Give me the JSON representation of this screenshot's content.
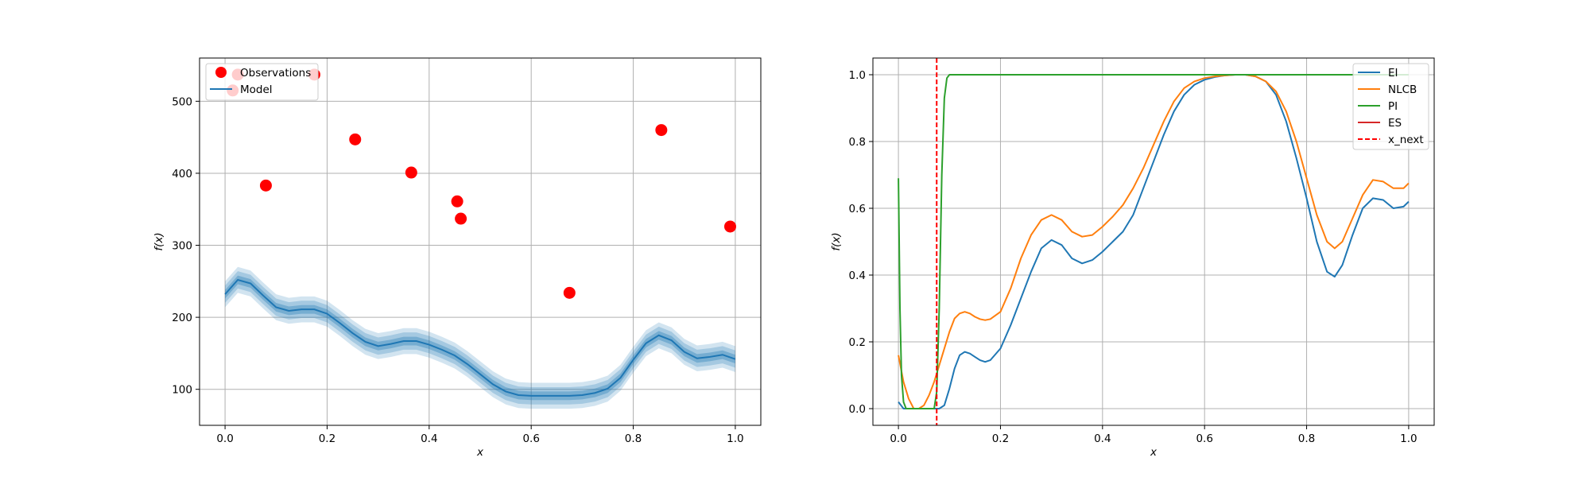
{
  "chart_data": [
    {
      "type": "scatter",
      "xlabel": "x",
      "ylabel": "f(x)",
      "xlim": [
        -0.05,
        1.05
      ],
      "ylim": [
        50,
        560
      ],
      "xticks": [
        0.0,
        0.2,
        0.4,
        0.6,
        0.8,
        1.0
      ],
      "xtick_labels": [
        "0.0",
        "0.2",
        "0.4",
        "0.6",
        "0.8",
        "1.0"
      ],
      "yticks": [
        100,
        200,
        300,
        400,
        500
      ],
      "ytick_labels": [
        "100",
        "200",
        "300",
        "400",
        "500"
      ],
      "grid": true,
      "legend_position": "upper-left",
      "legend": [
        "Observations",
        "Model"
      ],
      "observations": {
        "name": "Observations",
        "color": "#ff0000",
        "x": [
          0.015,
          0.025,
          0.08,
          0.175,
          0.255,
          0.365,
          0.455,
          0.462,
          0.675,
          0.855,
          0.99
        ],
        "y": [
          515,
          537,
          383,
          537,
          447,
          401,
          361,
          337,
          234,
          460,
          326
        ]
      },
      "model": {
        "name": "Model",
        "color": "#1f77b4",
        "x": [
          0.0,
          0.025,
          0.05,
          0.075,
          0.1,
          0.125,
          0.15,
          0.175,
          0.2,
          0.225,
          0.25,
          0.275,
          0.3,
          0.325,
          0.35,
          0.375,
          0.4,
          0.425,
          0.45,
          0.475,
          0.5,
          0.525,
          0.55,
          0.575,
          0.6,
          0.625,
          0.65,
          0.675,
          0.7,
          0.725,
          0.75,
          0.775,
          0.8,
          0.825,
          0.85,
          0.875,
          0.9,
          0.925,
          0.95,
          0.975,
          1.0
        ],
        "mean": [
          232,
          252,
          247,
          230,
          214,
          209,
          211,
          211,
          205,
          192,
          178,
          166,
          160,
          163,
          167,
          167,
          162,
          155,
          147,
          135,
          121,
          107,
          97,
          92,
          91,
          91,
          91,
          91,
          92,
          95,
          101,
          116,
          141,
          164,
          175,
          168,
          152,
          143,
          145,
          148,
          142
        ],
        "bands": [
          6,
          12,
          18
        ]
      }
    },
    {
      "type": "line",
      "xlabel": "x",
      "ylabel": "f(x)",
      "xlim": [
        -0.05,
        1.05
      ],
      "ylim": [
        -0.05,
        1.05
      ],
      "xticks": [
        0.0,
        0.2,
        0.4,
        0.6,
        0.8,
        1.0
      ],
      "xtick_labels": [
        "0.0",
        "0.2",
        "0.4",
        "0.6",
        "0.8",
        "1.0"
      ],
      "yticks": [
        0.0,
        0.2,
        0.4,
        0.6,
        0.8,
        1.0
      ],
      "ytick_labels": [
        "0.0",
        "0.2",
        "0.4",
        "0.6",
        "0.8",
        "1.0"
      ],
      "grid": true,
      "legend_position": "upper-right",
      "series": [
        {
          "name": "EI",
          "color": "#1f77b4",
          "x": [
            0.0,
            0.005,
            0.01,
            0.015,
            0.02,
            0.04,
            0.06,
            0.075,
            0.08,
            0.09,
            0.1,
            0.11,
            0.12,
            0.13,
            0.14,
            0.15,
            0.16,
            0.17,
            0.18,
            0.2,
            0.22,
            0.24,
            0.26,
            0.28,
            0.3,
            0.32,
            0.34,
            0.36,
            0.38,
            0.4,
            0.42,
            0.44,
            0.46,
            0.48,
            0.5,
            0.52,
            0.54,
            0.56,
            0.58,
            0.6,
            0.62,
            0.64,
            0.66,
            0.68,
            0.7,
            0.72,
            0.74,
            0.76,
            0.78,
            0.8,
            0.82,
            0.84,
            0.855,
            0.87,
            0.89,
            0.91,
            0.93,
            0.95,
            0.97,
            0.99,
            1.0
          ],
          "y": [
            0.02,
            0.01,
            0.0,
            0.0,
            0.0,
            0.0,
            0.0,
            0.0,
            0.0,
            0.01,
            0.06,
            0.12,
            0.16,
            0.17,
            0.165,
            0.155,
            0.145,
            0.14,
            0.145,
            0.18,
            0.25,
            0.33,
            0.41,
            0.48,
            0.505,
            0.49,
            0.45,
            0.435,
            0.445,
            0.47,
            0.5,
            0.53,
            0.58,
            0.66,
            0.74,
            0.82,
            0.89,
            0.94,
            0.97,
            0.985,
            0.993,
            0.998,
            1.0,
            1.0,
            0.995,
            0.98,
            0.94,
            0.86,
            0.75,
            0.63,
            0.5,
            0.41,
            0.395,
            0.43,
            0.52,
            0.6,
            0.63,
            0.625,
            0.6,
            0.605,
            0.62
          ]
        },
        {
          "name": "NLCB",
          "color": "#ff7f0e",
          "x": [
            0.0,
            0.01,
            0.02,
            0.03,
            0.04,
            0.05,
            0.06,
            0.07,
            0.08,
            0.09,
            0.1,
            0.11,
            0.12,
            0.13,
            0.14,
            0.15,
            0.16,
            0.17,
            0.18,
            0.2,
            0.22,
            0.24,
            0.26,
            0.28,
            0.3,
            0.32,
            0.34,
            0.36,
            0.38,
            0.4,
            0.42,
            0.44,
            0.46,
            0.48,
            0.5,
            0.52,
            0.54,
            0.56,
            0.58,
            0.6,
            0.62,
            0.64,
            0.66,
            0.68,
            0.7,
            0.72,
            0.74,
            0.76,
            0.78,
            0.8,
            0.82,
            0.84,
            0.855,
            0.87,
            0.89,
            0.91,
            0.93,
            0.95,
            0.97,
            0.99,
            1.0
          ],
          "y": [
            0.16,
            0.08,
            0.03,
            0.0,
            0.0,
            0.01,
            0.04,
            0.08,
            0.13,
            0.18,
            0.23,
            0.27,
            0.285,
            0.29,
            0.285,
            0.275,
            0.268,
            0.265,
            0.268,
            0.29,
            0.36,
            0.45,
            0.52,
            0.565,
            0.58,
            0.565,
            0.53,
            0.515,
            0.52,
            0.545,
            0.575,
            0.61,
            0.66,
            0.72,
            0.79,
            0.86,
            0.92,
            0.96,
            0.98,
            0.99,
            0.995,
            0.998,
            1.0,
            1.0,
            0.995,
            0.98,
            0.95,
            0.89,
            0.8,
            0.69,
            0.58,
            0.5,
            0.48,
            0.5,
            0.57,
            0.64,
            0.685,
            0.68,
            0.66,
            0.66,
            0.675
          ]
        },
        {
          "name": "PI",
          "color": "#2ca02c",
          "x": [
            0.0,
            0.003,
            0.006,
            0.01,
            0.015,
            0.02,
            0.05,
            0.07,
            0.075,
            0.08,
            0.085,
            0.09,
            0.095,
            0.1,
            0.105,
            0.11,
            0.12,
            1.0
          ],
          "y": [
            0.69,
            0.3,
            0.1,
            0.02,
            0.0,
            0.0,
            0.0,
            0.0,
            0.05,
            0.3,
            0.7,
            0.93,
            0.99,
            1.0,
            1.0,
            1.0,
            1.0,
            1.0
          ]
        },
        {
          "name": "ES",
          "color": "#d62728",
          "x": [],
          "y": []
        }
      ],
      "vline": {
        "name": "x_next",
        "x": 0.075,
        "color": "#ff0000",
        "dashed": true
      },
      "legend": [
        "EI",
        "NLCB",
        "PI",
        "ES",
        "x_next"
      ]
    }
  ]
}
